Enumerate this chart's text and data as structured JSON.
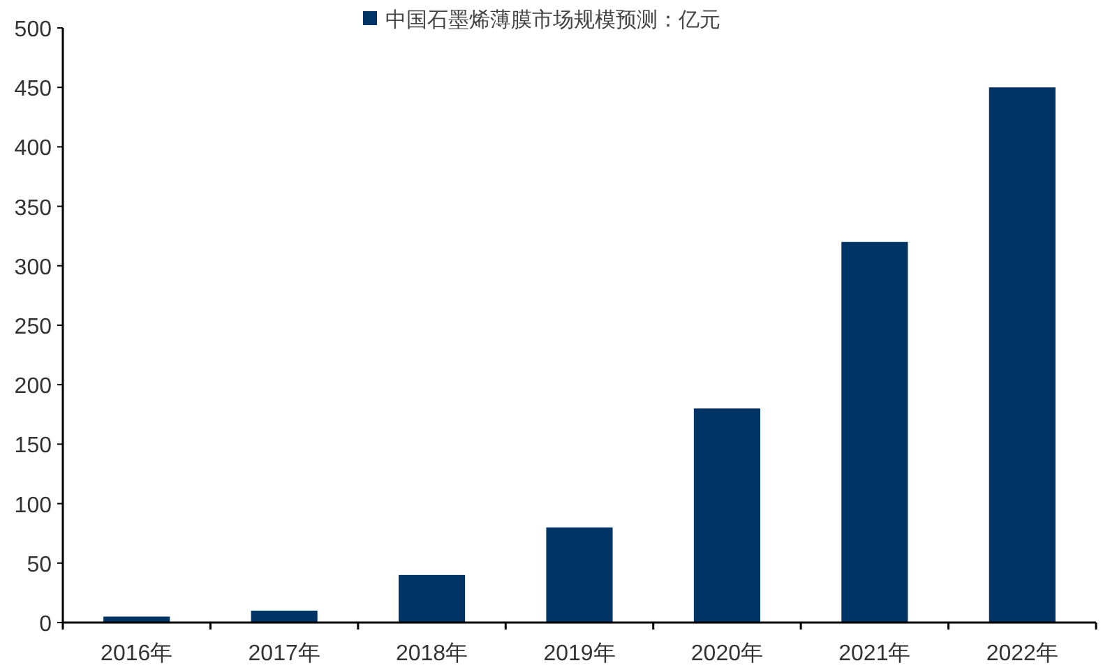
{
  "chart_data": {
    "type": "bar",
    "categories": [
      "2016年",
      "2017年",
      "2018年",
      "2019年",
      "2020年",
      "2021年",
      "2022年"
    ],
    "series": [
      {
        "name": "中国石墨烯薄膜市场规模预测：亿元",
        "color": "#003366",
        "values": [
          5,
          10,
          40,
          80,
          180,
          320,
          450
        ]
      }
    ],
    "ylim": [
      0,
      500
    ],
    "yticks": [
      0,
      50,
      100,
      150,
      200,
      250,
      300,
      350,
      400,
      450,
      500
    ],
    "legend": "top",
    "grid": false
  }
}
